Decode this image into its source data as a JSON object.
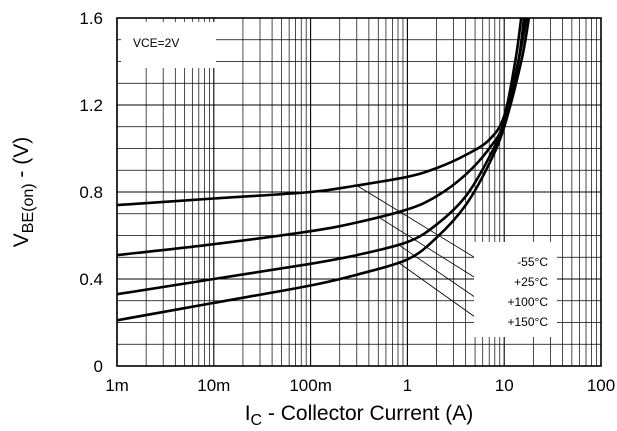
{
  "chart_data": {
    "type": "line",
    "xscale": "log",
    "xlim": [
      0.001,
      100
    ],
    "ylim": [
      0,
      1.6
    ],
    "grid": true,
    "annotation": "VCE=2V",
    "x_ticks": [
      {
        "v": 0.001,
        "label": "1m"
      },
      {
        "v": 0.01,
        "label": "10m"
      },
      {
        "v": 0.1,
        "label": "100m"
      },
      {
        "v": 1,
        "label": "1"
      },
      {
        "v": 10,
        "label": "10"
      },
      {
        "v": 100,
        "label": "100"
      }
    ],
    "y_ticks": [
      {
        "v": 0,
        "label": "0"
      },
      {
        "v": 0.4,
        "label": "0.4"
      },
      {
        "v": 0.8,
        "label": "0.8"
      },
      {
        "v": 1.2,
        "label": "1.2"
      },
      {
        "v": 1.6,
        "label": "1.6"
      }
    ],
    "ylabel_main": "V",
    "ylabel_sub": "BE(on)",
    "ylabel_rest": " - (V)",
    "xlabel_main": "I",
    "xlabel_sub": "C",
    "xlabel_rest": " - Collector Current (A)",
    "legend_position": "lower-right",
    "series": [
      {
        "name": "-55°C",
        "points": [
          [
            0.001,
            0.74
          ],
          [
            0.01,
            0.77
          ],
          [
            0.1,
            0.8
          ],
          [
            0.3,
            0.83
          ],
          [
            1,
            0.87
          ],
          [
            2,
            0.91
          ],
          [
            4,
            0.97
          ],
          [
            7,
            1.04
          ],
          [
            10,
            1.15
          ],
          [
            13,
            1.4
          ],
          [
            15,
            1.6
          ]
        ]
      },
      {
        "name": "+25°C",
        "points": [
          [
            0.001,
            0.51
          ],
          [
            0.01,
            0.56
          ],
          [
            0.1,
            0.62
          ],
          [
            0.3,
            0.66
          ],
          [
            1,
            0.72
          ],
          [
            2,
            0.78
          ],
          [
            4,
            0.88
          ],
          [
            7,
            1.0
          ],
          [
            10,
            1.12
          ],
          [
            14,
            1.4
          ],
          [
            16,
            1.6
          ]
        ]
      },
      {
        "name": "+100°C",
        "points": [
          [
            0.001,
            0.33
          ],
          [
            0.01,
            0.4
          ],
          [
            0.1,
            0.47
          ],
          [
            0.3,
            0.51
          ],
          [
            1,
            0.57
          ],
          [
            2,
            0.65
          ],
          [
            4,
            0.78
          ],
          [
            7,
            0.96
          ],
          [
            10,
            1.12
          ],
          [
            14,
            1.4
          ],
          [
            17,
            1.6
          ]
        ]
      },
      {
        "name": "+150°C",
        "points": [
          [
            0.001,
            0.21
          ],
          [
            0.01,
            0.29
          ],
          [
            0.1,
            0.37
          ],
          [
            0.3,
            0.42
          ],
          [
            1,
            0.49
          ],
          [
            2,
            0.59
          ],
          [
            4,
            0.74
          ],
          [
            7,
            0.93
          ],
          [
            10,
            1.1
          ],
          [
            15,
            1.4
          ],
          [
            18,
            1.6
          ]
        ]
      }
    ]
  }
}
